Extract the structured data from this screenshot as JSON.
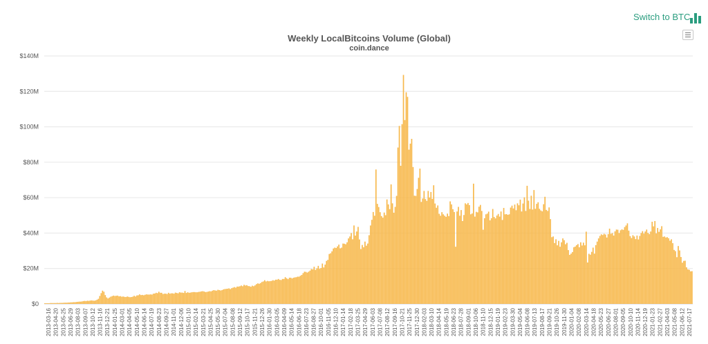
{
  "header": {
    "switch_label": "Switch to BTC",
    "switch_icon": "bar-chart-icon",
    "menu_icon": "hamburger-menu-icon"
  },
  "colors": {
    "bar": "#f7b84b",
    "bar_edge": "#eeaa35",
    "grid": "#e6e6e6",
    "switch": "#2a9d7f"
  },
  "chart_data": {
    "type": "bar",
    "title": "Weekly LocalBitcoins Volume (Global)",
    "subtitle": "coin.dance",
    "xlabel": "",
    "ylabel": "",
    "ylim": [
      0,
      140
    ],
    "y_unit": "millions USD",
    "y_ticks": [
      "$0",
      "$20M",
      "$40M",
      "$60M",
      "$80M",
      "$100M",
      "$120M",
      "$140M"
    ],
    "x_tick_labels": [
      "2013-03-16",
      "2013-04-20",
      "2013-05-25",
      "2013-06-29",
      "2013-08-03",
      "2013-09-07",
      "2013-10-12",
      "2013-11-16",
      "2013-12-21",
      "2014-01-25",
      "2014-03-01",
      "2014-04-05",
      "2014-05-10",
      "2014-06-14",
      "2014-07-19",
      "2014-08-23",
      "2014-09-27",
      "2014-11-01",
      "2014-12-06",
      "2015-01-10",
      "2015-02-14",
      "2015-03-21",
      "2015-04-25",
      "2015-05-30",
      "2015-07-04",
      "2015-08-08",
      "2015-09-12",
      "2015-10-17",
      "2015-11-21",
      "2015-12-26",
      "2016-01-30",
      "2016-03-05",
      "2016-04-09",
      "2016-05-14",
      "2016-06-18",
      "2016-07-23",
      "2016-08-27",
      "2016-10-01",
      "2016-11-05",
      "2016-12-10",
      "2017-01-14",
      "2017-02-18",
      "2017-03-25",
      "2017-04-29",
      "2017-06-03",
      "2017-07-08",
      "2017-08-12",
      "2017-09-16",
      "2017-10-21",
      "2017-11-25",
      "2017-12-30",
      "2018-02-03",
      "2018-03-10",
      "2018-04-14",
      "2018-05-19",
      "2018-06-23",
      "2018-07-28",
      "2018-09-01",
      "2018-10-06",
      "2018-11-10",
      "2018-12-15",
      "2019-01-19",
      "2019-02-23",
      "2019-03-30",
      "2019-05-04",
      "2019-06-08",
      "2019-07-13",
      "2019-08-17",
      "2019-09-21",
      "2019-10-26",
      "2019-11-30",
      "2020-01-04",
      "2020-02-08",
      "2020-03-14",
      "2020-04-18",
      "2020-05-23",
      "2020-06-27",
      "2020-08-01",
      "2020-09-05",
      "2020-10-10",
      "2020-11-14",
      "2020-12-19",
      "2021-01-23",
      "2021-02-27",
      "2021-04-03",
      "2021-05-08",
      "2021-06-12",
      "2021-07-17"
    ],
    "values": [
      0.4,
      0.4,
      0.4,
      0.4,
      0.5,
      0.5,
      0.5,
      0.5,
      0.5,
      0.6,
      0.5,
      0.6,
      0.6,
      0.6,
      0.7,
      0.7,
      0.7,
      0.8,
      0.8,
      0.9,
      0.9,
      1.0,
      1.0,
      1.1,
      1.2,
      1.3,
      1.3,
      1.4,
      1.6,
      1.7,
      1.6,
      1.8,
      1.7,
      1.9,
      2.0,
      1.9,
      1.8,
      2.0,
      2.4,
      2.9,
      4.5,
      6.1,
      7.5,
      6.9,
      5.0,
      3.7,
      3.1,
      3.6,
      4.1,
      4.4,
      4.7,
      4.5,
      4.6,
      4.7,
      4.3,
      4.4,
      4.1,
      4.2,
      4.0,
      3.9,
      4.2,
      4.0,
      3.8,
      3.9,
      4.1,
      4.6,
      4.2,
      4.8,
      4.9,
      5.4,
      5.0,
      5.1,
      4.9,
      5.2,
      5.4,
      5.3,
      5.3,
      5.4,
      5.3,
      5.8,
      5.9,
      6.3,
      6.1,
      6.9,
      6.3,
      6.3,
      5.6,
      5.8,
      5.8,
      5.6,
      6.3,
      5.8,
      6.0,
      6.0,
      5.8,
      6.4,
      6.2,
      6.0,
      6.6,
      6.4,
      6.4,
      6.2,
      7.3,
      6.2,
      6.6,
      6.3,
      6.4,
      6.6,
      6.7,
      6.7,
      6.6,
      6.6,
      6.8,
      6.9,
      7.1,
      7.2,
      7.0,
      6.7,
      6.8,
      7.0,
      7.2,
      7.1,
      7.5,
      7.8,
      7.6,
      7.5,
      8.0,
      7.8,
      7.6,
      7.8,
      8.2,
      8.4,
      8.5,
      8.6,
      8.8,
      8.4,
      8.9,
      9.2,
      9.5,
      9.2,
      9.8,
      9.8,
      10.0,
      10.4,
      10.0,
      10.8,
      10.4,
      10.6,
      10.1,
      10.0,
      9.7,
      10.3,
      10.0,
      10.5,
      11.2,
      11.6,
      11.4,
      11.8,
      12.4,
      12.7,
      13.4,
      12.7,
      13.0,
      12.8,
      12.9,
      13.0,
      13.4,
      13.2,
      13.7,
      13.7,
      14.1,
      13.6,
      13.5,
      14.1,
      14.1,
      15.1,
      14.5,
      14.0,
      14.8,
      14.8,
      14.4,
      14.8,
      15.0,
      15.1,
      15.4,
      15.4,
      15.9,
      16.4,
      17.4,
      18.2,
      18.1,
      17.7,
      18.2,
      18.8,
      19.7,
      19.5,
      21.0,
      19.2,
      20.1,
      21.5,
      19.8,
      20.3,
      22.8,
      20.6,
      22.2,
      24.3,
      24.9,
      28.2,
      28.6,
      29.7,
      31.3,
      31.8,
      31.6,
      32.5,
      33.5,
      31.4,
      31.8,
      34.1,
      34.0,
      33.7,
      34.8,
      37.0,
      38.1,
      40.0,
      36.5,
      44.3,
      38.6,
      40.9,
      43.5,
      36.4,
      31.0,
      33.3,
      32.0,
      35.2,
      32.9,
      34.1,
      38.8,
      44.3,
      47.5,
      51.9,
      49.8,
      75.9,
      56.5,
      54.7,
      51.8,
      49.6,
      48.7,
      51.6,
      50.1,
      59.0,
      56.2,
      53.5,
      67.5,
      56.8,
      51.5,
      54.8,
      61.0,
      88.3,
      100.5,
      78.0,
      101.5,
      129.3,
      103.8,
      119.5,
      116.9,
      87.1,
      90.5,
      93.2,
      77.3,
      61.1,
      61.0,
      64.9,
      71.2,
      76.4,
      57.6,
      59.5,
      63.8,
      59.2,
      58.2,
      63.8,
      60.1,
      63.2,
      59.3,
      67.0,
      56.7,
      54.3,
      55.6,
      50.9,
      49.8,
      51.8,
      50.6,
      49.8,
      49.2,
      51.0,
      49.6,
      57.9,
      56.2,
      53.5,
      51.9,
      32.3,
      52.2,
      54.8,
      49.8,
      53.0,
      46.8,
      50.2,
      56.8,
      56.2,
      57.0,
      55.8,
      50.6,
      51.1,
      67.9,
      49.3,
      52.0,
      51.7,
      54.9,
      55.9,
      52.5,
      41.9,
      48.4,
      50.6,
      51.0,
      52.1,
      47.2,
      48.4,
      53.6,
      49.1,
      48.3,
      49.9,
      50.8,
      49.3,
      52.2,
      47.4,
      54.2,
      50.6,
      50.7,
      50.3,
      50.6,
      54.4,
      55.5,
      53.9,
      56.1,
      52.9,
      56.8,
      55.7,
      58.9,
      52.2,
      56.7,
      60.2,
      52.5,
      66.7,
      58.3,
      53.6,
      61.1,
      53.3,
      64.3,
      53.7,
      56.5,
      57.4,
      53.7,
      52.8,
      52.3,
      56.3,
      60.5,
      53.1,
      52.5,
      54.5,
      47.9,
      37.7,
      38.1,
      34.4,
      36.5,
      33.1,
      35.6,
      32.3,
      34.8,
      37.0,
      36.0,
      33.7,
      34.5,
      30.4,
      27.7,
      28.4,
      29.3,
      32.0,
      32.4,
      33.2,
      33.8,
      32.0,
      34.8,
      33.0,
      34.6,
      33.1,
      40.8,
      23.4,
      28.3,
      27.8,
      29.4,
      31.8,
      28.4,
      33.2,
      35.2,
      37.0,
      38.4,
      39.3,
      38.9,
      39.6,
      39.2,
      37.5,
      39.4,
      42.5,
      39.6,
      40.0,
      38.6,
      41.0,
      42.0,
      41.9,
      40.0,
      41.6,
      42.1,
      41.8,
      43.4,
      44.3,
      45.5,
      41.4,
      38.3,
      37.2,
      38.8,
      38.1,
      36.6,
      38.6,
      36.4,
      38.4,
      40.0,
      41.1,
      39.7,
      40.9,
      42.0,
      40.1,
      39.4,
      40.9,
      46.4,
      43.8,
      46.8,
      39.8,
      42.9,
      40.7,
      42.1,
      43.9,
      37.9,
      38.1,
      37.5,
      37.7,
      37.1,
      35.7,
      36.5,
      34.3,
      30.5,
      29.8,
      26.4,
      32.7,
      30.2,
      26.5,
      23.3,
      24.3,
      24.4,
      20.7,
      19.5,
      19.3,
      18.4,
      18.5
    ]
  }
}
